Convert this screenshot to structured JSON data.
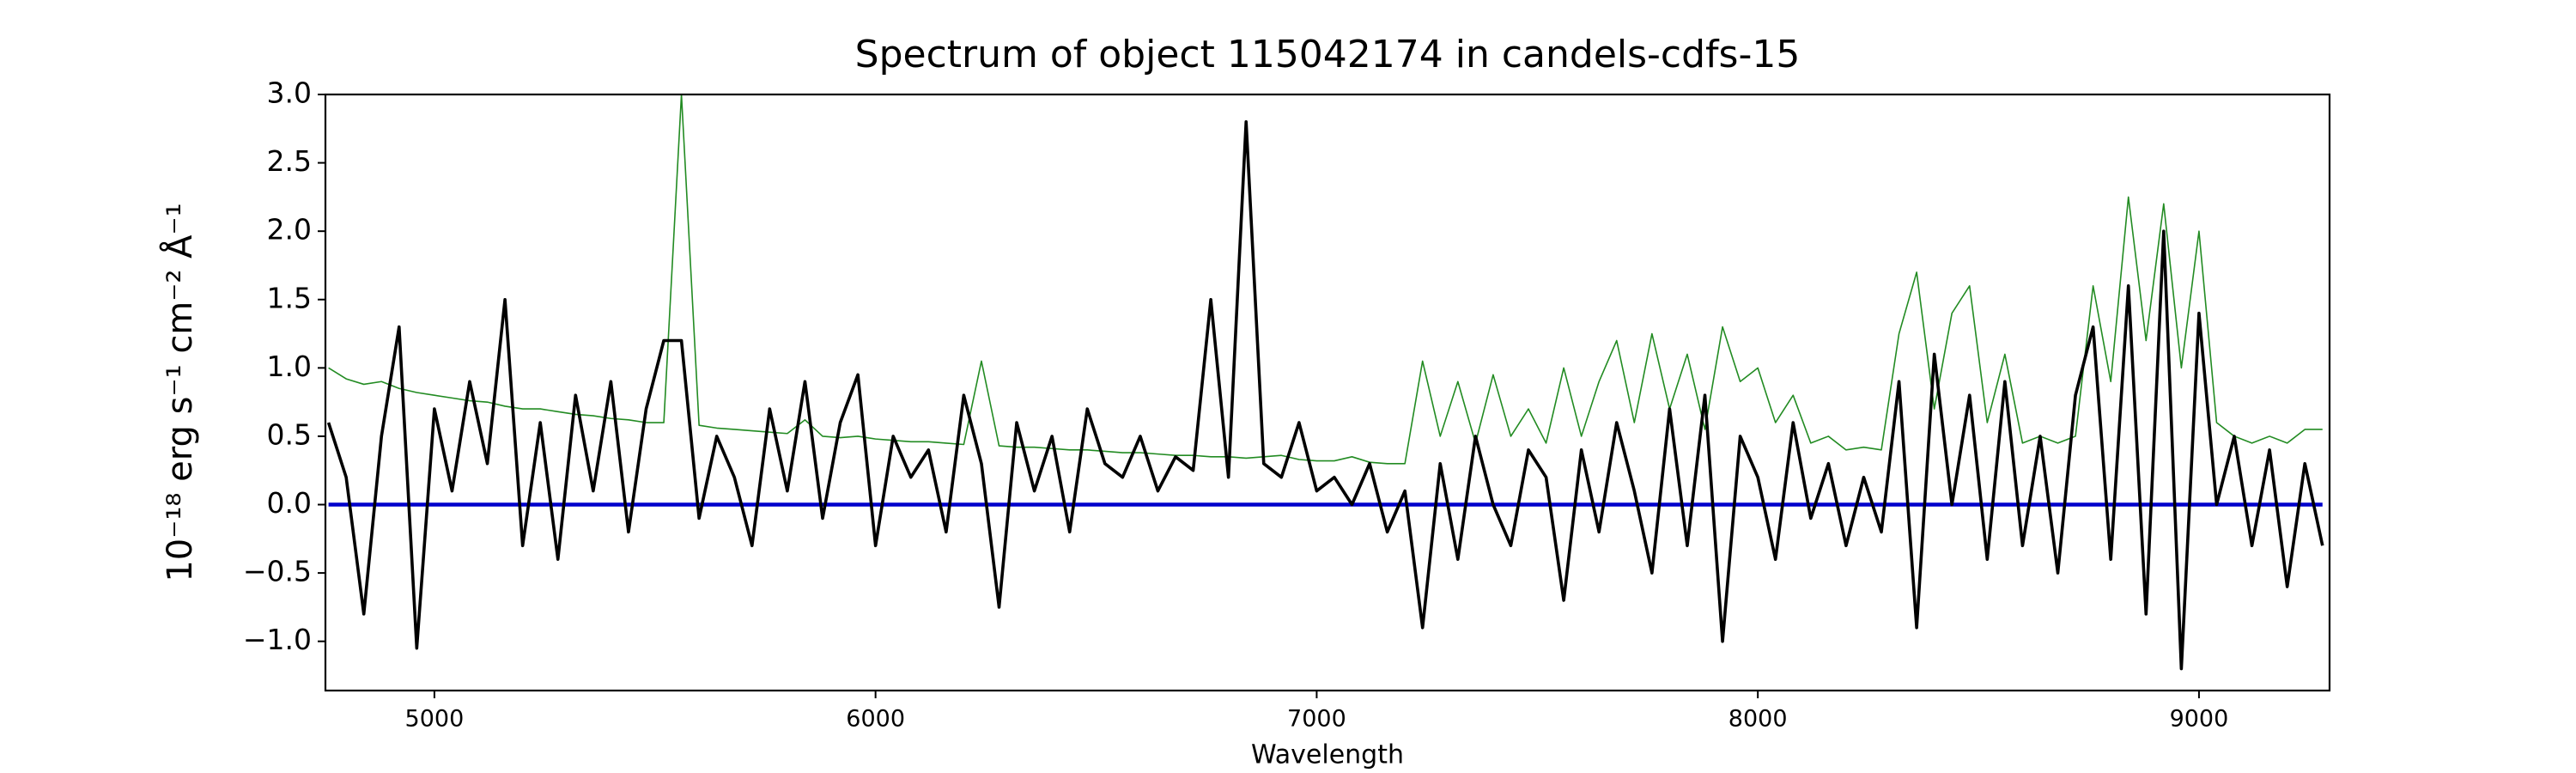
{
  "chart_data": {
    "type": "line",
    "title": "Spectrum of object 115042174 in candels-cdfs-15",
    "x_label": "Wavelength",
    "y_label": "10⁻¹⁸ erg s⁻¹ cm⁻² Å⁻¹",
    "xlim": [
      4753,
      9296
    ],
    "ylim": [
      -1.36,
      3.0
    ],
    "xticks": [
      5000,
      6000,
      7000,
      8000,
      9000
    ],
    "yticks": [
      {
        "value": -1.0,
        "label": "−1.0"
      },
      {
        "value": -0.5,
        "label": "−0.5"
      },
      {
        "value": 0.0,
        "label": "0.0"
      },
      {
        "value": 0.5,
        "label": "0.5"
      },
      {
        "value": 1.0,
        "label": "1.0"
      },
      {
        "value": 1.5,
        "label": "1.5"
      },
      {
        "value": 2.0,
        "label": "2.0"
      },
      {
        "value": 2.5,
        "label": "2.5"
      },
      {
        "value": 3.0,
        "label": "3.0"
      }
    ],
    "x": [
      4760,
      4800,
      4840,
      4880,
      4920,
      4960,
      5000,
      5040,
      5080,
      5120,
      5160,
      5200,
      5240,
      5280,
      5320,
      5360,
      5400,
      5440,
      5480,
      5520,
      5560,
      5600,
      5640,
      5680,
      5720,
      5760,
      5800,
      5840,
      5880,
      5920,
      5960,
      6000,
      6040,
      6080,
      6120,
      6160,
      6200,
      6240,
      6280,
      6320,
      6360,
      6400,
      6440,
      6480,
      6520,
      6560,
      6600,
      6640,
      6680,
      6720,
      6760,
      6800,
      6840,
      6880,
      6920,
      6960,
      7000,
      7040,
      7080,
      7120,
      7160,
      7200,
      7240,
      7280,
      7320,
      7360,
      7400,
      7440,
      7480,
      7520,
      7560,
      7600,
      7640,
      7680,
      7720,
      7760,
      7800,
      7840,
      7880,
      7920,
      7960,
      8000,
      8040,
      8080,
      8120,
      8160,
      8200,
      8240,
      8280,
      8320,
      8360,
      8400,
      8440,
      8480,
      8520,
      8560,
      8600,
      8640,
      8680,
      8720,
      8760,
      8800,
      8840,
      8880,
      8920,
      8960,
      9000,
      9040,
      9080,
      9120,
      9160,
      9200,
      9240,
      9280
    ],
    "series": [
      {
        "color": "#228b22",
        "width": 1.6,
        "values": [
          1.0,
          0.92,
          0.88,
          0.9,
          0.85,
          0.82,
          0.8,
          0.78,
          0.76,
          0.75,
          0.72,
          0.7,
          0.7,
          0.68,
          0.66,
          0.65,
          0.63,
          0.62,
          0.6,
          0.6,
          3.0,
          0.58,
          0.56,
          0.55,
          0.54,
          0.53,
          0.52,
          0.62,
          0.5,
          0.49,
          0.5,
          0.48,
          0.47,
          0.46,
          0.46,
          0.45,
          0.44,
          1.05,
          0.43,
          0.42,
          0.42,
          0.41,
          0.4,
          0.4,
          0.39,
          0.38,
          0.38,
          0.37,
          0.36,
          0.36,
          0.35,
          0.35,
          0.34,
          0.35,
          0.36,
          0.33,
          0.32,
          0.32,
          0.35,
          0.31,
          0.3,
          0.3,
          1.05,
          0.5,
          0.9,
          0.45,
          0.95,
          0.5,
          0.7,
          0.45,
          1.0,
          0.5,
          0.9,
          1.2,
          0.6,
          1.25,
          0.7,
          1.1,
          0.55,
          1.3,
          0.9,
          1.0,
          0.6,
          0.8,
          0.45,
          0.5,
          0.4,
          0.42,
          0.4,
          1.25,
          1.7,
          0.7,
          1.4,
          1.6,
          0.6,
          1.1,
          0.45,
          0.5,
          0.45,
          0.5,
          1.6,
          0.9,
          2.25,
          1.2,
          2.2,
          1.0,
          2.0,
          0.6,
          0.5,
          0.45,
          0.5,
          0.45,
          0.55,
          0.55
        ]
      },
      {
        "color": "#0000cc",
        "width": 4.5,
        "values": [
          0,
          0,
          0,
          0,
          0,
          0,
          0,
          0,
          0,
          0,
          0,
          0,
          0,
          0,
          0,
          0,
          0,
          0,
          0,
          0,
          0,
          0,
          0,
          0,
          0,
          0,
          0,
          0,
          0,
          0,
          0,
          0,
          0,
          0,
          0,
          0,
          0,
          0,
          0,
          0,
          0,
          0,
          0,
          0,
          0,
          0,
          0,
          0,
          0,
          0,
          0,
          0,
          0,
          0,
          0,
          0,
          0,
          0,
          0,
          0,
          0,
          0,
          0,
          0,
          0,
          0,
          0,
          0,
          0,
          0,
          0,
          0,
          0,
          0,
          0,
          0,
          0,
          0,
          0,
          0,
          0,
          0,
          0,
          0,
          0,
          0,
          0,
          0,
          0,
          0,
          0,
          0,
          0,
          0,
          0,
          0,
          0,
          0,
          0,
          0,
          0,
          0,
          0,
          0,
          0,
          0,
          0,
          0,
          0,
          0,
          0,
          0,
          0,
          0
        ]
      },
      {
        "color": "#000000",
        "width": 3.6,
        "values": [
          0.6,
          0.2,
          -0.8,
          0.5,
          1.3,
          -1.05,
          0.7,
          0.1,
          0.9,
          0.3,
          1.5,
          -0.3,
          0.6,
          -0.4,
          0.8,
          0.1,
          0.9,
          -0.2,
          0.7,
          1.2,
          1.2,
          -0.1,
          0.5,
          0.2,
          -0.3,
          0.7,
          0.1,
          0.9,
          -0.1,
          0.6,
          0.95,
          -0.3,
          0.5,
          0.2,
          0.4,
          -0.2,
          0.8,
          0.3,
          -0.75,
          0.6,
          0.1,
          0.5,
          -0.2,
          0.7,
          0.3,
          0.2,
          0.5,
          0.1,
          0.35,
          0.25,
          1.5,
          0.2,
          2.8,
          0.3,
          0.2,
          0.6,
          0.1,
          0.2,
          0.0,
          0.3,
          -0.2,
          0.1,
          -0.9,
          0.3,
          -0.4,
          0.5,
          0.0,
          -0.3,
          0.4,
          0.2,
          -0.7,
          0.4,
          -0.2,
          0.6,
          0.1,
          -0.5,
          0.7,
          -0.3,
          0.8,
          -1.0,
          0.5,
          0.2,
          -0.4,
          0.6,
          -0.1,
          0.3,
          -0.3,
          0.2,
          -0.2,
          0.9,
          -0.9,
          1.1,
          0.0,
          0.8,
          -0.4,
          0.9,
          -0.3,
          0.5,
          -0.5,
          0.8,
          1.3,
          -0.4,
          1.6,
          -0.8,
          2.0,
          -1.2,
          1.4,
          0.0,
          0.5,
          -0.3,
          0.4,
          -0.6,
          0.3,
          -0.3
        ]
      }
    ]
  }
}
